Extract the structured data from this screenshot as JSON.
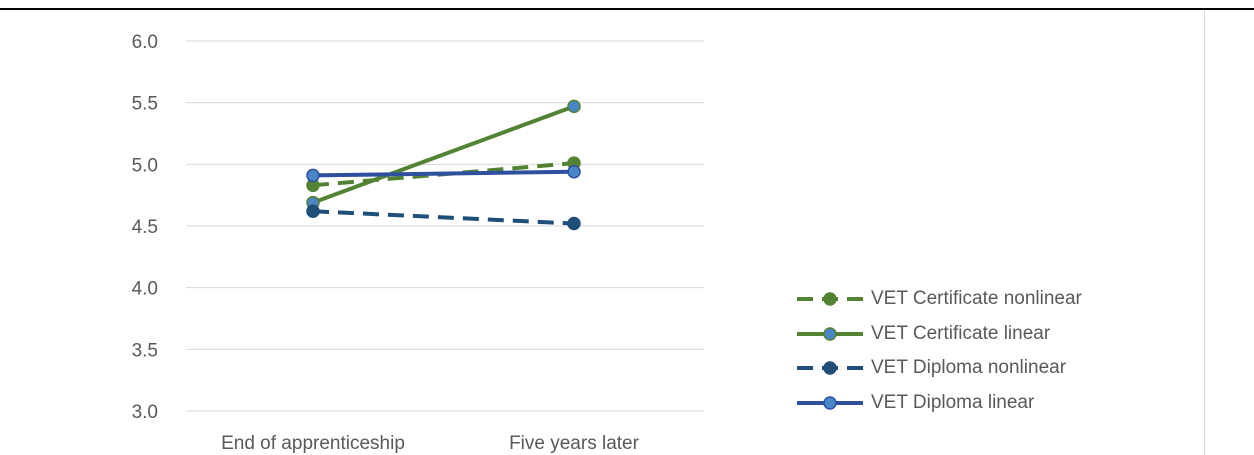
{
  "chart_data": {
    "type": "line",
    "categories": [
      "End of apprenticeship",
      "Five years later"
    ],
    "yticks": [
      "3.0",
      "3.5",
      "4.0",
      "4.5",
      "5.0",
      "5.5",
      "6.0"
    ],
    "ylim": [
      3.0,
      6.0
    ],
    "grid": true,
    "legend_position": "right",
    "series": [
      {
        "name": "VET Certificate nonlinear",
        "values": [
          4.83,
          5.01
        ],
        "color": "#548235",
        "marker_color": "#548235",
        "dashed": true
      },
      {
        "name": "VET Certificate linear",
        "values": [
          4.69,
          5.47
        ],
        "color": "#548235",
        "marker_color": "#4A86C5",
        "dashed": false
      },
      {
        "name": "VET Diploma nonlinear",
        "values": [
          4.62,
          4.52
        ],
        "color": "#1F4E79",
        "marker_color": "#1F4E79",
        "dashed": true
      },
      {
        "name": "VET Diploma linear",
        "values": [
          4.91,
          4.94
        ],
        "color": "#2F4F9F",
        "marker_color": "#4A86C5",
        "dashed": false
      }
    ]
  }
}
